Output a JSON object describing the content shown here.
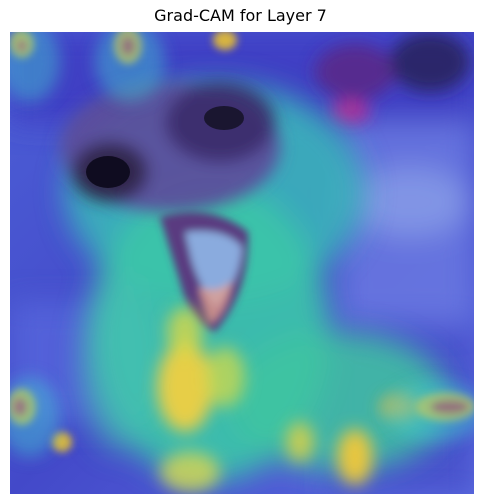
{
  "figure": {
    "title": "Grad-CAM for Layer 7"
  },
  "image": {
    "subject": "dog photo with Grad-CAM heatmap overlay",
    "colormap": "jet"
  },
  "colors": {
    "low_activation": "#3c3cd8",
    "mid_activation": "#36c8b4",
    "high_activation": "#f0c83c",
    "peak_activation": "#e8324a"
  }
}
